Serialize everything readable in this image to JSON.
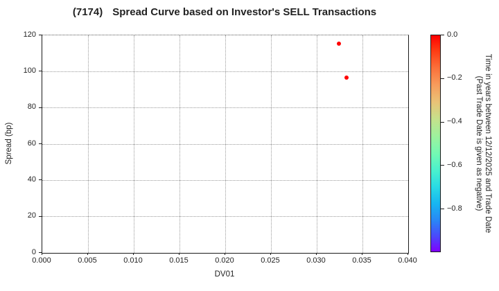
{
  "title": {
    "code": "(7174)",
    "text": "Spread Curve based on Investor's SELL Transactions"
  },
  "chart_data": {
    "type": "scatter",
    "title": "(7174)  Spread Curve based on Investor's SELL Transactions",
    "xlabel": "DV01",
    "ylabel": "Spread (bp)",
    "xlim": [
      0.0,
      0.04
    ],
    "ylim": [
      0,
      120
    ],
    "grid": true,
    "x_ticks": [
      0.0,
      0.005,
      0.01,
      0.015,
      0.02,
      0.025,
      0.03,
      0.035,
      0.04
    ],
    "x_tick_labels": [
      "0.000",
      "0.005",
      "0.010",
      "0.015",
      "0.020",
      "0.025",
      "0.030",
      "0.035",
      "0.040"
    ],
    "y_ticks": [
      0,
      20,
      40,
      60,
      80,
      100,
      120
    ],
    "y_tick_labels": [
      "0",
      "20",
      "40",
      "60",
      "80",
      "100",
      "120"
    ],
    "points": [
      {
        "x": 0.0325,
        "y": 115.2,
        "time_value": 0.0,
        "color": "#ff0000"
      },
      {
        "x": 0.0333,
        "y": 96.4,
        "time_value": 0.0,
        "color": "#ff0000"
      }
    ],
    "colorbar": {
      "label_lines": [
        "Time in years between 12/12/2025 and Trade Date",
        "(Past Trade Date is given as negative)"
      ],
      "min": -1.0,
      "max": 0.0,
      "ticks": [
        0.0,
        -0.2,
        -0.4,
        -0.6,
        -0.8
      ],
      "tick_labels": [
        "0.0",
        "−0.2",
        "−0.4",
        "−0.6",
        "−0.8"
      ],
      "colormap": "rainbow",
      "gradient_stops": [
        {
          "pos": 0,
          "color": "#ff0000"
        },
        {
          "pos": 7,
          "color": "#fd3b13"
        },
        {
          "pos": 15,
          "color": "#fb703a"
        },
        {
          "pos": 23,
          "color": "#f79c5c"
        },
        {
          "pos": 31,
          "color": "#e9c377"
        },
        {
          "pos": 39,
          "color": "#c4e28c"
        },
        {
          "pos": 47,
          "color": "#9cf29e"
        },
        {
          "pos": 55,
          "color": "#72f9b4"
        },
        {
          "pos": 63,
          "color": "#48f0cf"
        },
        {
          "pos": 70,
          "color": "#2adbe4"
        },
        {
          "pos": 78,
          "color": "#17b5f1"
        },
        {
          "pos": 86,
          "color": "#2a84f6"
        },
        {
          "pos": 93,
          "color": "#4b48fb"
        },
        {
          "pos": 100,
          "color": "#8000ff"
        }
      ]
    }
  }
}
